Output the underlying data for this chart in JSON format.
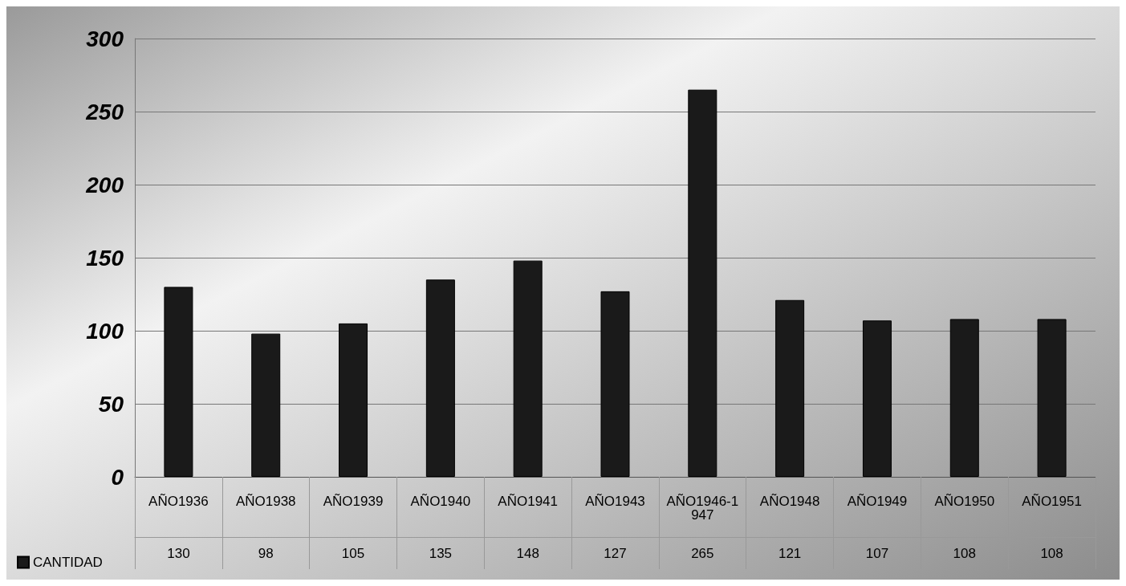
{
  "chart_data": {
    "type": "bar",
    "categories": [
      "AÑO1936",
      "AÑO1938",
      "AÑO1939",
      "AÑO1940",
      "AÑO1941",
      "AÑO1943",
      "AÑO1946-1947",
      "AÑO1948",
      "AÑO1949",
      "AÑO1950",
      "AÑO1951"
    ],
    "series": [
      {
        "name": "CANTIDAD",
        "color": "#1a1a1a",
        "values": [
          130,
          98,
          105,
          135,
          148,
          127,
          265,
          121,
          107,
          108,
          108
        ]
      }
    ],
    "ylim": [
      0,
      300
    ],
    "yticks": [
      0,
      50,
      100,
      150,
      200,
      250,
      300
    ],
    "grid": "y",
    "legend": "bottom left",
    "data_labels": true
  }
}
